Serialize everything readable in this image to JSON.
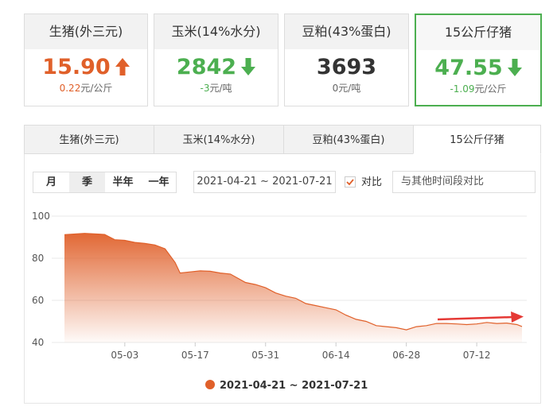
{
  "cards": [
    {
      "title": "生猪(外三元)",
      "value": "15.90",
      "change": "0.22",
      "unit": "元/公斤",
      "trend": "up",
      "color": "#e0602a",
      "selected": false
    },
    {
      "title": "玉米(14%水分)",
      "value": "2842",
      "change": "-3",
      "unit": "元/吨",
      "trend": "down",
      "color": "#4caf50",
      "selected": false
    },
    {
      "title": "豆粕(43%蛋白)",
      "value": "3693",
      "change": "0",
      "unit": "元/吨",
      "trend": "none",
      "color": "#333333",
      "selected": false
    },
    {
      "title": "15公斤仔猪",
      "value": "47.55",
      "change": "-1.09",
      "unit": "元/公斤",
      "trend": "down",
      "color": "#4caf50",
      "selected": true
    }
  ],
  "tabs": [
    "生猪(外三元)",
    "玉米(14%水分)",
    "豆粕(43%蛋白)",
    "15公斤仔猪"
  ],
  "active_tab": 3,
  "periods": [
    "月",
    "季",
    "半年",
    "一年"
  ],
  "active_period": 1,
  "date_range": "2021-04-21 ~ 2021-07-21",
  "compare_label": "对比",
  "compare_checked": true,
  "compare_placeholder": "与其他时间段对比",
  "chart_data": {
    "type": "area",
    "x": [
      "04-21",
      "04-25",
      "04-29",
      "05-01",
      "05-03",
      "05-05",
      "05-07",
      "05-09",
      "05-11",
      "05-13",
      "05-14",
      "05-16",
      "05-18",
      "05-20",
      "05-22",
      "05-24",
      "05-27",
      "05-29",
      "05-31",
      "06-02",
      "06-04",
      "06-06",
      "06-08",
      "06-10",
      "06-12",
      "06-14",
      "06-16",
      "06-18",
      "06-20",
      "06-22",
      "06-24",
      "06-26",
      "06-28",
      "06-30",
      "07-02",
      "07-04",
      "07-06",
      "07-08",
      "07-10",
      "07-12",
      "07-14",
      "07-16",
      "07-18",
      "07-20",
      "07-21"
    ],
    "series": [
      {
        "name": "2021-04-21 ~ 2021-07-21",
        "color": "#e0602a",
        "values": [
          91.2,
          91.8,
          91.3,
          88.8,
          88.5,
          87.5,
          87,
          86.3,
          84.5,
          78,
          73,
          73.5,
          74,
          73.8,
          73,
          72.5,
          68.5,
          67.5,
          66,
          63.5,
          62,
          61,
          58.5,
          57.5,
          56.5,
          55.5,
          53,
          51,
          50,
          48,
          47.5,
          47,
          46,
          47.5,
          48,
          49,
          49,
          48.8,
          48.5,
          48.8,
          49.5,
          49,
          49.2,
          48.5,
          47.6
        ]
      }
    ],
    "xlim": [
      "04-21",
      "07-21"
    ],
    "xticks": [
      "05-03",
      "05-17",
      "05-31",
      "06-14",
      "06-28",
      "07-12"
    ],
    "ylim": [
      40,
      100
    ],
    "yticks": [
      40,
      60,
      80,
      100
    ],
    "grid": true,
    "legend": "bottom"
  }
}
